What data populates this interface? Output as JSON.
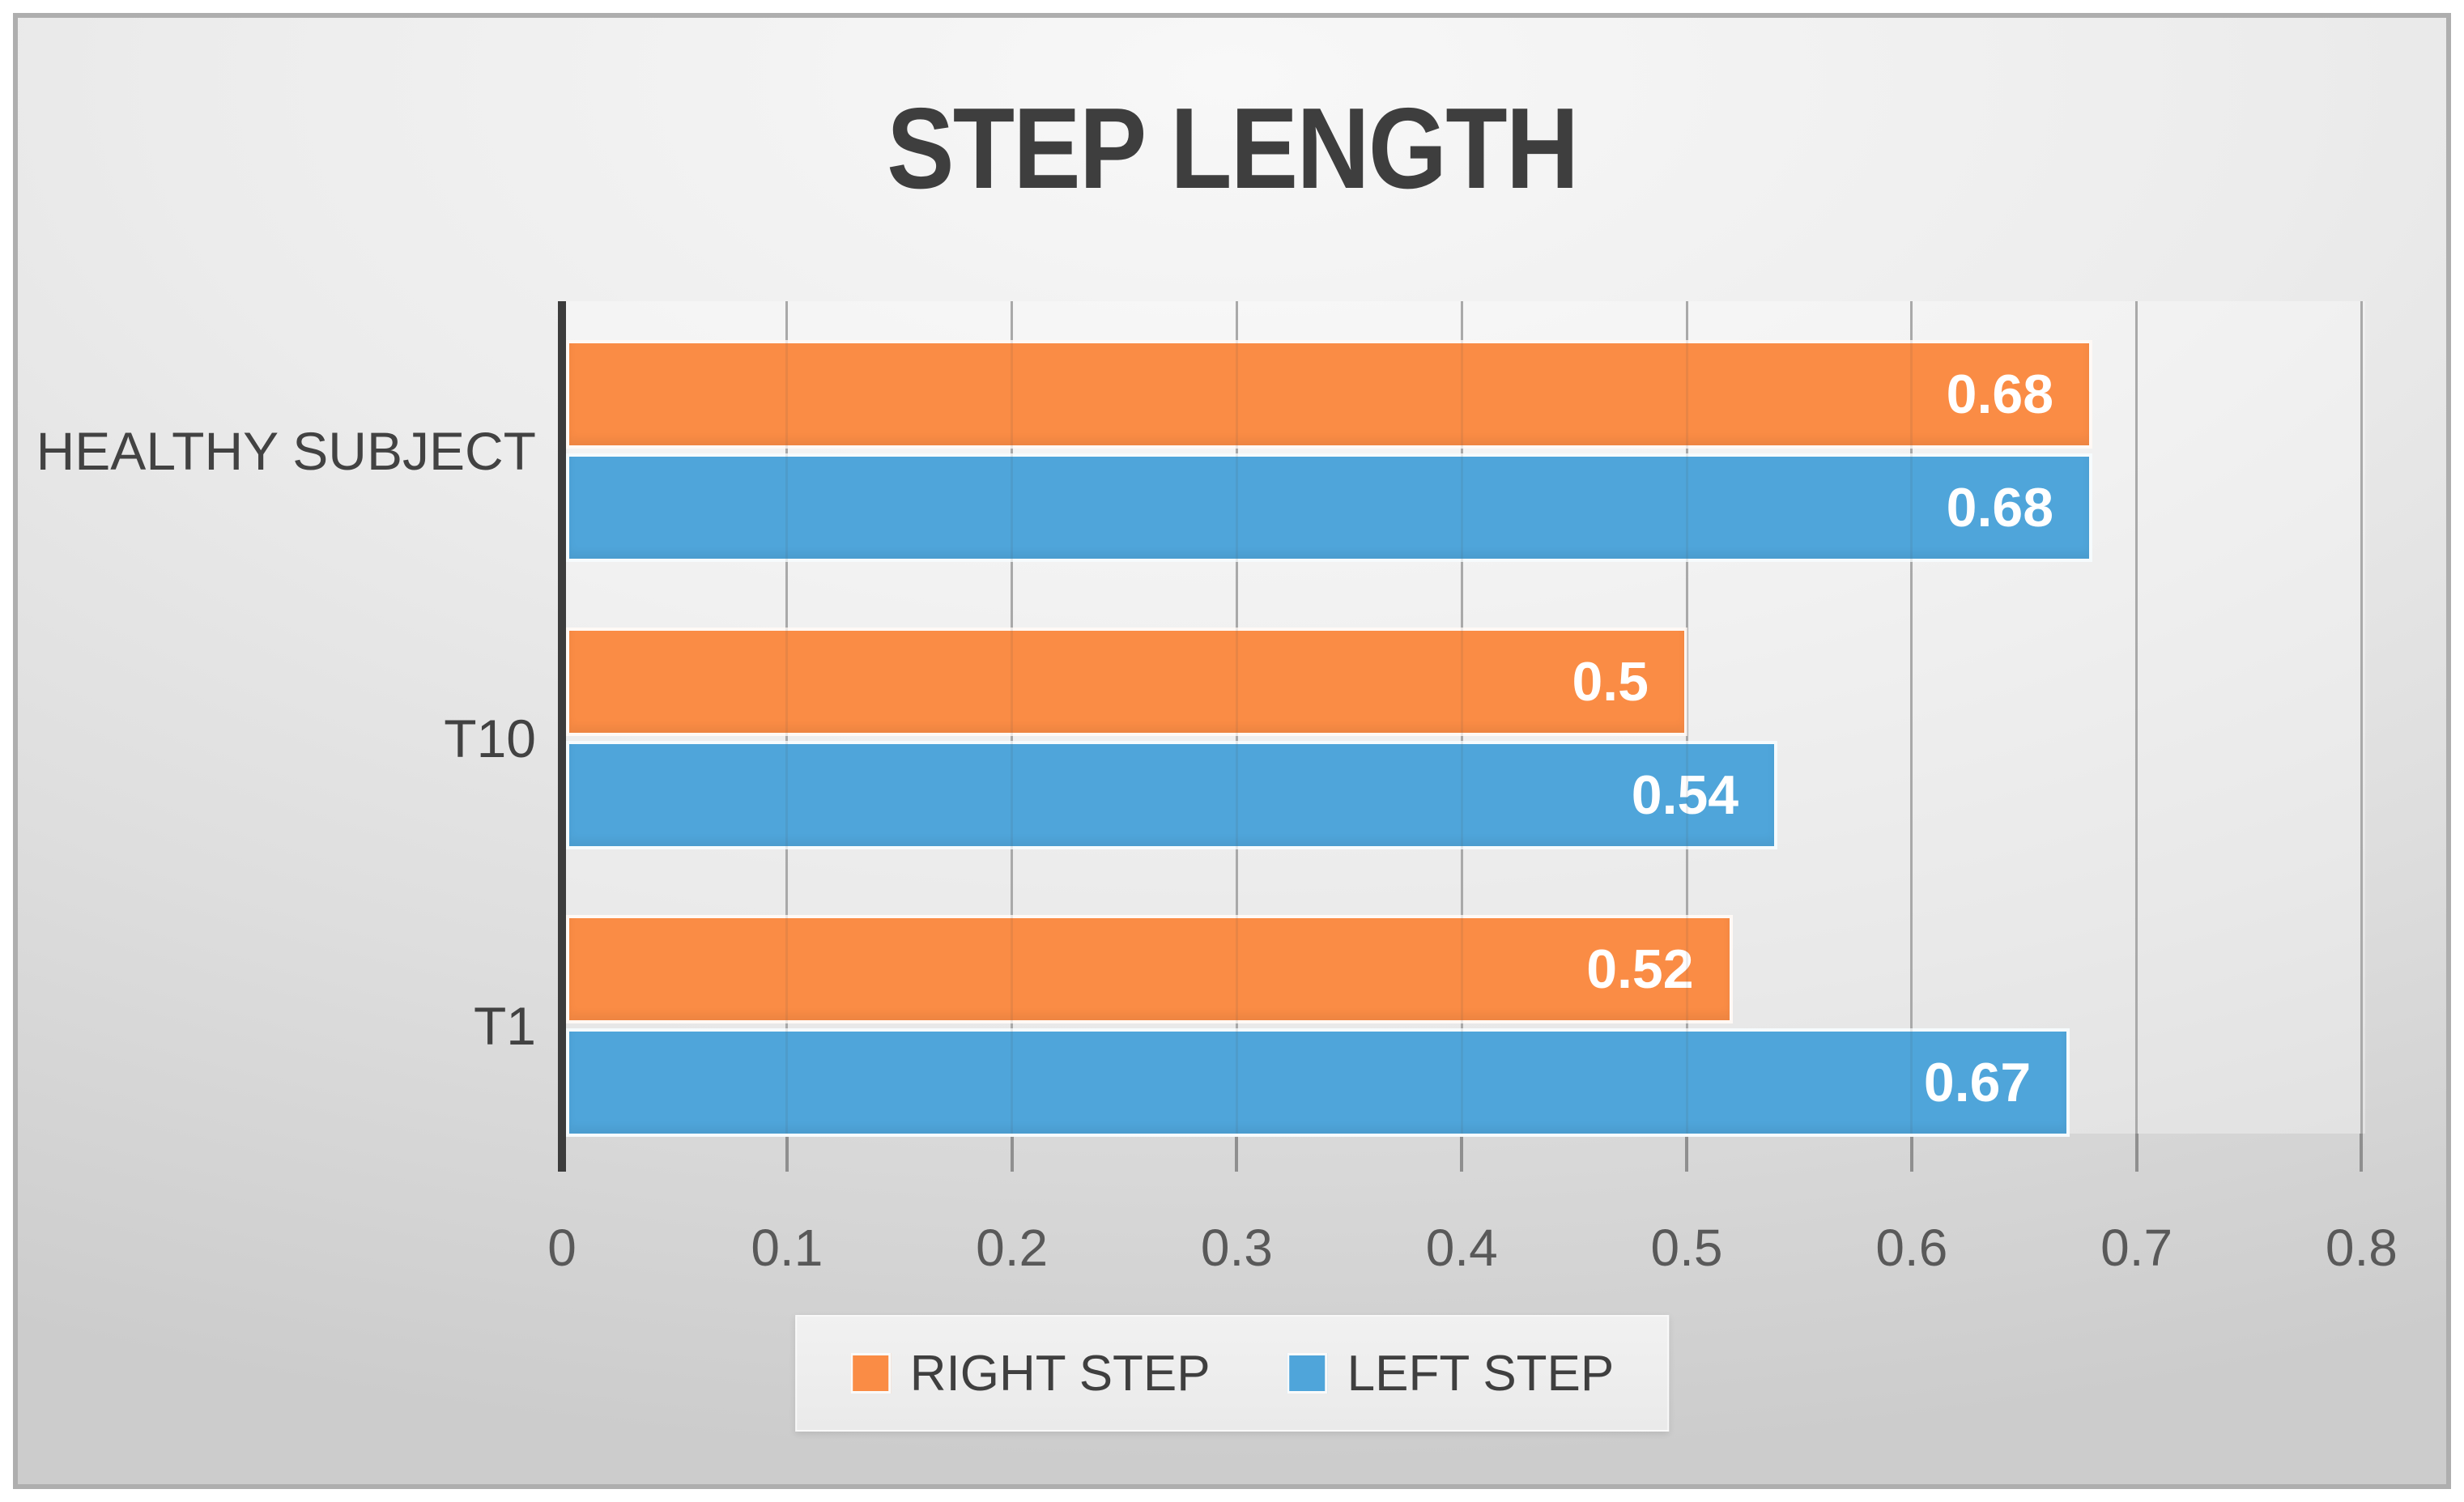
{
  "title": "STEP LENGTH",
  "chart_data": {
    "type": "bar",
    "orientation": "horizontal",
    "title": "STEP LENGTH",
    "categories": [
      "HEALTHY SUBJECT",
      "T10",
      "T1"
    ],
    "series": [
      {
        "name": "RIGHT STEP",
        "color": "#fa8c45",
        "values": [
          0.68,
          0.5,
          0.52
        ],
        "labels": [
          "0.68",
          "0.5",
          "0.52"
        ]
      },
      {
        "name": "LEFT STEP",
        "color": "#4fa5da",
        "values": [
          0.68,
          0.54,
          0.67
        ],
        "labels": [
          "0.68",
          "0.54",
          "0.67"
        ]
      }
    ],
    "xlabel": "",
    "ylabel": "",
    "xlim": [
      0,
      0.8
    ],
    "xticks": [
      "0",
      "0.1",
      "0.2",
      "0.3",
      "0.4",
      "0.5",
      "0.6",
      "0.7",
      "0.8"
    ],
    "grid": true,
    "value_labels": "inside-end",
    "value_label_color": "#ffffff",
    "legend_position": "bottom",
    "legend": [
      "RIGHT STEP",
      "LEFT STEP"
    ]
  },
  "colors": {
    "right_step": "#fa8c45",
    "left_step": "#4fa5da",
    "axis_line": "#3c3c3c",
    "gridline": "#b4b4b4",
    "title_text": "#3e3e3e",
    "tick_text": "#595959",
    "category_text": "#424242"
  }
}
